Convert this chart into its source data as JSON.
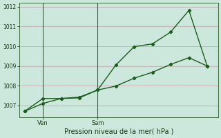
{
  "title": "Pression niveau de la mer( hPa )",
  "background_color": "#cce8dc",
  "plot_bg_color": "#cce8dc",
  "grid_color": "#c8b8b8",
  "line_color": "#1a5c1a",
  "ylim": [
    1006.4,
    1012.2
  ],
  "yticks": [
    1007,
    1008,
    1009,
    1010,
    1011,
    1012
  ],
  "line1_x": [
    0,
    1,
    2,
    3,
    4,
    5,
    6,
    7,
    8,
    9,
    10
  ],
  "line1_y": [
    1006.7,
    1007.1,
    1007.35,
    1007.38,
    1007.78,
    1009.05,
    1009.98,
    1010.12,
    1010.72,
    1011.82,
    1009.0
  ],
  "line2_x": [
    0,
    1,
    2,
    3,
    4,
    5,
    6,
    7,
    8,
    9,
    10
  ],
  "line2_y": [
    1006.7,
    1007.35,
    1007.35,
    1007.42,
    1007.78,
    1007.98,
    1008.38,
    1008.68,
    1009.08,
    1009.42,
    1009.0
  ],
  "xlabel_day1": "Ven",
  "xlabel_day2": "Sam",
  "vline1_x": 1.0,
  "vline2_x": 4.0,
  "xlim": [
    -0.3,
    10.6
  ]
}
